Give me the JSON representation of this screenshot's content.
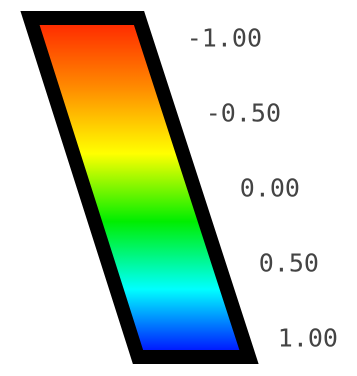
{
  "chart_data": {
    "type": "heatmap",
    "title": "",
    "colormap": [
      "#ff2200",
      "#ff8800",
      "#ffff00",
      "#00ee00",
      "#00ffff",
      "#0000ff"
    ],
    "range": [
      -1.0,
      1.0
    ],
    "ticks": [
      {
        "value": -1.0,
        "label": "-1.00"
      },
      {
        "value": -0.5,
        "label": "-0.50"
      },
      {
        "value": 0.0,
        "label": "0.00"
      },
      {
        "value": 0.5,
        "label": "0.50"
      },
      {
        "value": 1.0,
        "label": "1.00"
      }
    ]
  }
}
